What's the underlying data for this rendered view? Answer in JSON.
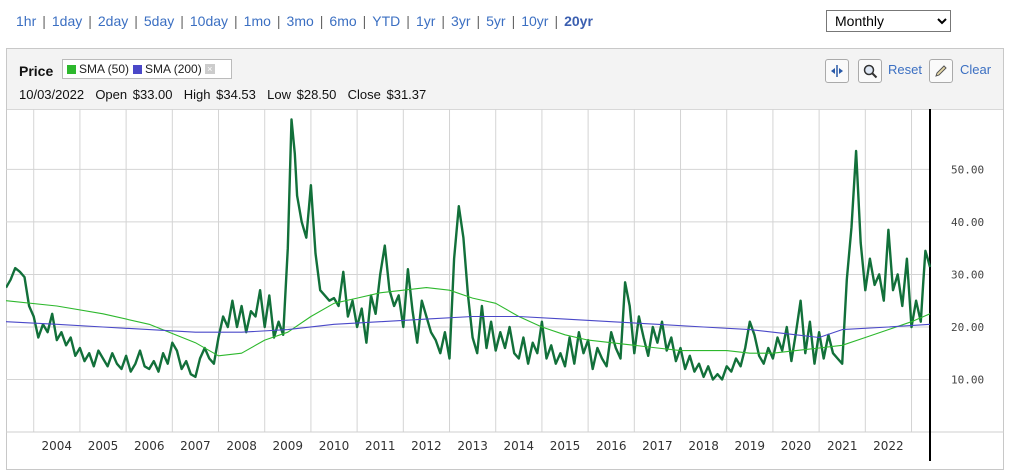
{
  "range_bar": {
    "items": [
      "1hr",
      "1day",
      "2day",
      "5day",
      "10day",
      "1mo",
      "3mo",
      "6mo",
      "YTD",
      "1yr",
      "3yr",
      "5yr",
      "10yr",
      "20yr"
    ],
    "active": "20yr"
  },
  "period_select": {
    "value": "Monthly"
  },
  "header": {
    "price_label": "Price",
    "legend": [
      {
        "name": "SMA (50)",
        "color": "#2db82d"
      },
      {
        "name": "SMA (200)",
        "color": "#4a48c8"
      }
    ],
    "ohlc": {
      "date": "10/03/2022",
      "open": "$33.00",
      "high": "$34.53",
      "low": "$28.50",
      "close": "$31.37"
    },
    "ohlc_labels": {
      "open": "Open",
      "high": "High",
      "low": "Low",
      "close": "Close"
    }
  },
  "toolbar": {
    "reset_label": "Reset",
    "clear_label": "Clear"
  },
  "chart_data": {
    "type": "line",
    "x_ticks": [
      "2004",
      "2005",
      "2006",
      "2007",
      "2008",
      "2009",
      "2010",
      "2011",
      "2012",
      "2013",
      "2014",
      "2015",
      "2016",
      "2017",
      "2018",
      "2019",
      "2020",
      "2021",
      "2022"
    ],
    "y_ticks": [
      "10.00",
      "20.00",
      "30.00",
      "40.00",
      "50.00"
    ],
    "xlim": [
      2002.9,
      2022.9
    ],
    "ylim": [
      0,
      61.5
    ],
    "grid": true,
    "series": [
      {
        "name": "Price",
        "color": "#12703a",
        "points": [
          [
            2002.9,
            27.5
          ],
          [
            2003.0,
            29.0
          ],
          [
            2003.1,
            31.2
          ],
          [
            2003.2,
            30.5
          ],
          [
            2003.3,
            29.5
          ],
          [
            2003.4,
            24.0
          ],
          [
            2003.5,
            22.0
          ],
          [
            2003.6,
            18.0
          ],
          [
            2003.7,
            20.5
          ],
          [
            2003.8,
            19.0
          ],
          [
            2003.9,
            22.5
          ],
          [
            2004.0,
            17.5
          ],
          [
            2004.1,
            19.0
          ],
          [
            2004.2,
            16.5
          ],
          [
            2004.3,
            18.0
          ],
          [
            2004.4,
            14.5
          ],
          [
            2004.5,
            16.0
          ],
          [
            2004.6,
            13.5
          ],
          [
            2004.7,
            15.0
          ],
          [
            2004.8,
            12.5
          ],
          [
            2004.9,
            15.5
          ],
          [
            2005.0,
            14.0
          ],
          [
            2005.1,
            12.5
          ],
          [
            2005.2,
            15.0
          ],
          [
            2005.3,
            13.0
          ],
          [
            2005.4,
            12.0
          ],
          [
            2005.5,
            14.5
          ],
          [
            2005.6,
            11.5
          ],
          [
            2005.7,
            13.0
          ],
          [
            2005.8,
            15.5
          ],
          [
            2005.9,
            12.5
          ],
          [
            2006.0,
            12.0
          ],
          [
            2006.1,
            13.5
          ],
          [
            2006.2,
            11.5
          ],
          [
            2006.3,
            15.0
          ],
          [
            2006.4,
            13.0
          ],
          [
            2006.5,
            17.0
          ],
          [
            2006.6,
            15.5
          ],
          [
            2006.7,
            12.0
          ],
          [
            2006.8,
            13.5
          ],
          [
            2006.9,
            11.0
          ],
          [
            2007.0,
            10.5
          ],
          [
            2007.1,
            14.0
          ],
          [
            2007.2,
            16.0
          ],
          [
            2007.3,
            14.0
          ],
          [
            2007.4,
            13.0
          ],
          [
            2007.5,
            18.0
          ],
          [
            2007.6,
            22.0
          ],
          [
            2007.7,
            20.0
          ],
          [
            2007.8,
            25.0
          ],
          [
            2007.9,
            20.0
          ],
          [
            2008.0,
            24.0
          ],
          [
            2008.1,
            19.0
          ],
          [
            2008.2,
            23.0
          ],
          [
            2008.3,
            22.0
          ],
          [
            2008.4,
            27.0
          ],
          [
            2008.5,
            20.0
          ],
          [
            2008.6,
            26.0
          ],
          [
            2008.7,
            18.0
          ],
          [
            2008.8,
            21.0
          ],
          [
            2008.9,
            18.5
          ],
          [
            2009.0,
            35.0
          ],
          [
            2009.08,
            59.5
          ],
          [
            2009.15,
            53.0
          ],
          [
            2009.2,
            45.0
          ],
          [
            2009.3,
            40.0
          ],
          [
            2009.4,
            37.0
          ],
          [
            2009.5,
            47.0
          ],
          [
            2009.6,
            34.0
          ],
          [
            2009.7,
            27.0
          ],
          [
            2009.8,
            26.0
          ],
          [
            2009.9,
            25.0
          ],
          [
            2010.0,
            25.5
          ],
          [
            2010.1,
            24.0
          ],
          [
            2010.2,
            30.5
          ],
          [
            2010.3,
            22.0
          ],
          [
            2010.4,
            25.0
          ],
          [
            2010.5,
            20.0
          ],
          [
            2010.6,
            23.5
          ],
          [
            2010.7,
            17.0
          ],
          [
            2010.8,
            26.0
          ],
          [
            2010.9,
            22.5
          ],
          [
            2011.0,
            30.0
          ],
          [
            2011.1,
            35.5
          ],
          [
            2011.2,
            27.0
          ],
          [
            2011.3,
            24.0
          ],
          [
            2011.4,
            26.0
          ],
          [
            2011.5,
            20.0
          ],
          [
            2011.6,
            31.0
          ],
          [
            2011.7,
            23.0
          ],
          [
            2011.8,
            17.0
          ],
          [
            2011.9,
            25.0
          ],
          [
            2012.0,
            22.0
          ],
          [
            2012.1,
            19.0
          ],
          [
            2012.2,
            17.5
          ],
          [
            2012.3,
            15.0
          ],
          [
            2012.4,
            19.0
          ],
          [
            2012.5,
            14.0
          ],
          [
            2012.6,
            33.0
          ],
          [
            2012.7,
            43.0
          ],
          [
            2012.8,
            37.0
          ],
          [
            2012.9,
            26.0
          ],
          [
            2013.0,
            18.0
          ],
          [
            2013.1,
            15.0
          ],
          [
            2013.2,
            24.0
          ],
          [
            2013.3,
            16.0
          ],
          [
            2013.4,
            21.0
          ],
          [
            2013.5,
            15.5
          ],
          [
            2013.6,
            19.0
          ],
          [
            2013.7,
            16.0
          ],
          [
            2013.8,
            20.0
          ],
          [
            2013.9,
            15.0
          ],
          [
            2014.0,
            14.0
          ],
          [
            2014.1,
            18.0
          ],
          [
            2014.2,
            13.0
          ],
          [
            2014.3,
            17.0
          ],
          [
            2014.4,
            15.0
          ],
          [
            2014.5,
            21.0
          ],
          [
            2014.6,
            14.0
          ],
          [
            2014.7,
            16.5
          ],
          [
            2014.8,
            13.0
          ],
          [
            2014.9,
            15.0
          ],
          [
            2015.0,
            12.5
          ],
          [
            2015.1,
            18.0
          ],
          [
            2015.2,
            13.0
          ],
          [
            2015.3,
            19.0
          ],
          [
            2015.4,
            15.0
          ],
          [
            2015.5,
            17.5
          ],
          [
            2015.6,
            12.0
          ],
          [
            2015.7,
            16.0
          ],
          [
            2015.8,
            14.0
          ],
          [
            2015.9,
            12.5
          ],
          [
            2016.0,
            19.0
          ],
          [
            2016.1,
            16.0
          ],
          [
            2016.2,
            14.0
          ],
          [
            2016.3,
            28.5
          ],
          [
            2016.4,
            24.0
          ],
          [
            2016.5,
            15.0
          ],
          [
            2016.6,
            22.0
          ],
          [
            2016.7,
            18.0
          ],
          [
            2016.8,
            14.5
          ],
          [
            2016.9,
            20.0
          ],
          [
            2017.0,
            17.0
          ],
          [
            2017.1,
            21.0
          ],
          [
            2017.2,
            15.5
          ],
          [
            2017.3,
            18.0
          ],
          [
            2017.4,
            13.5
          ],
          [
            2017.5,
            16.0
          ],
          [
            2017.6,
            12.0
          ],
          [
            2017.7,
            14.5
          ],
          [
            2017.8,
            11.5
          ],
          [
            2017.9,
            13.0
          ],
          [
            2018.0,
            10.5
          ],
          [
            2018.1,
            12.5
          ],
          [
            2018.2,
            10.0
          ],
          [
            2018.3,
            11.0
          ],
          [
            2018.4,
            10.0
          ],
          [
            2018.5,
            12.5
          ],
          [
            2018.6,
            11.5
          ],
          [
            2018.7,
            14.0
          ],
          [
            2018.8,
            12.5
          ],
          [
            2018.9,
            16.0
          ],
          [
            2019.0,
            21.0
          ],
          [
            2019.1,
            18.5
          ],
          [
            2019.2,
            14.5
          ],
          [
            2019.3,
            13.0
          ],
          [
            2019.4,
            16.0
          ],
          [
            2019.5,
            14.0
          ],
          [
            2019.6,
            18.0
          ],
          [
            2019.7,
            15.5
          ],
          [
            2019.8,
            20.0
          ],
          [
            2019.9,
            13.5
          ],
          [
            2020.0,
            19.0
          ],
          [
            2020.1,
            25.0
          ],
          [
            2020.2,
            15.0
          ],
          [
            2020.3,
            21.0
          ],
          [
            2020.4,
            13.0
          ],
          [
            2020.5,
            19.0
          ],
          [
            2020.6,
            14.0
          ],
          [
            2020.7,
            18.5
          ],
          [
            2020.8,
            15.0
          ],
          [
            2020.9,
            14.0
          ],
          [
            2021.0,
            13.0
          ],
          [
            2021.1,
            29.0
          ],
          [
            2021.2,
            39.0
          ],
          [
            2021.3,
            53.5
          ],
          [
            2021.4,
            36.0
          ],
          [
            2021.5,
            27.0
          ],
          [
            2021.6,
            33.0
          ],
          [
            2021.7,
            28.0
          ],
          [
            2021.8,
            30.0
          ],
          [
            2021.9,
            25.0
          ],
          [
            2022.0,
            38.5
          ],
          [
            2022.1,
            27.0
          ],
          [
            2022.2,
            30.0
          ],
          [
            2022.3,
            24.0
          ],
          [
            2022.4,
            33.0
          ],
          [
            2022.5,
            20.0
          ],
          [
            2022.6,
            25.0
          ],
          [
            2022.7,
            21.0
          ],
          [
            2022.75,
            28.0
          ],
          [
            2022.8,
            34.5
          ],
          [
            2022.85,
            33.0
          ],
          [
            2022.9,
            31.4
          ]
        ]
      },
      {
        "name": "SMA (50)",
        "color": "#2db82d",
        "points": [
          [
            2002.9,
            25.0
          ],
          [
            2004.0,
            24.0
          ],
          [
            2005.0,
            22.5
          ],
          [
            2006.0,
            20.5
          ],
          [
            2007.0,
            17.0
          ],
          [
            2007.5,
            14.5
          ],
          [
            2008.0,
            15.0
          ],
          [
            2008.5,
            17.5
          ],
          [
            2009.0,
            19.0
          ],
          [
            2009.5,
            22.0
          ],
          [
            2010.0,
            24.5
          ],
          [
            2010.5,
            25.5
          ],
          [
            2011.0,
            26.5
          ],
          [
            2011.5,
            27.0
          ],
          [
            2012.0,
            27.5
          ],
          [
            2012.5,
            27.0
          ],
          [
            2013.0,
            25.5
          ],
          [
            2013.5,
            24.5
          ],
          [
            2014.0,
            22.0
          ],
          [
            2014.5,
            20.0
          ],
          [
            2015.0,
            18.5
          ],
          [
            2015.5,
            17.5
          ],
          [
            2016.0,
            17.0
          ],
          [
            2016.5,
            16.5
          ],
          [
            2017.0,
            16.0
          ],
          [
            2017.5,
            15.5
          ],
          [
            2018.0,
            15.5
          ],
          [
            2018.5,
            15.5
          ],
          [
            2019.0,
            15.0
          ],
          [
            2019.5,
            15.0
          ],
          [
            2020.0,
            15.5
          ],
          [
            2020.5,
            16.0
          ],
          [
            2021.0,
            16.5
          ],
          [
            2021.5,
            18.0
          ],
          [
            2022.0,
            19.5
          ],
          [
            2022.5,
            21.0
          ],
          [
            2022.9,
            22.5
          ]
        ]
      },
      {
        "name": "SMA (200)",
        "color": "#4a48c8",
        "points": [
          [
            2002.9,
            21.0
          ],
          [
            2004.0,
            20.5
          ],
          [
            2005.0,
            20.0
          ],
          [
            2006.0,
            19.5
          ],
          [
            2007.0,
            19.0
          ],
          [
            2008.0,
            19.0
          ],
          [
            2009.0,
            19.5
          ],
          [
            2010.0,
            20.5
          ],
          [
            2011.0,
            21.0
          ],
          [
            2012.0,
            21.5
          ],
          [
            2013.0,
            22.0
          ],
          [
            2014.0,
            22.0
          ],
          [
            2015.0,
            21.5
          ],
          [
            2016.0,
            21.0
          ],
          [
            2017.0,
            20.5
          ],
          [
            2018.0,
            20.0
          ],
          [
            2019.0,
            19.5
          ],
          [
            2020.0,
            18.5
          ],
          [
            2020.5,
            18.0
          ],
          [
            2021.0,
            19.5
          ],
          [
            2022.0,
            20.0
          ],
          [
            2022.9,
            20.5
          ]
        ]
      }
    ]
  }
}
